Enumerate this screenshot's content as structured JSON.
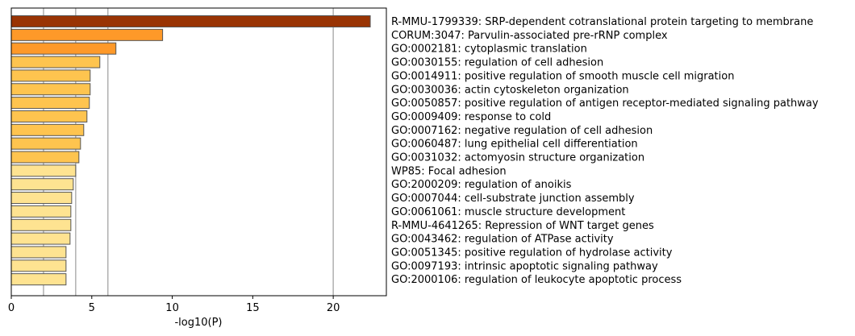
{
  "chart_data": {
    "type": "bar",
    "orientation": "horizontal",
    "xlabel": "-log10(P)",
    "xlim": [
      0,
      23.3
    ],
    "xticks": [
      0,
      5,
      10,
      15,
      20
    ],
    "gridlines_x": [
      2,
      4,
      6,
      20
    ],
    "categories": [
      "R-MMU-1799339: SRP-dependent cotranslational protein targeting to membrane",
      "CORUM:3047: Parvulin-associated pre-rRNP complex",
      "GO:0002181: cytoplasmic translation",
      "GO:0030155: regulation of cell adhesion",
      "GO:0014911: positive regulation of smooth muscle cell migration",
      "GO:0030036: actin cytoskeleton organization",
      "GO:0050857: positive regulation of antigen receptor-mediated signaling pathway",
      "GO:0009409: response to cold",
      "GO:0007162: negative regulation of cell adhesion",
      "GO:0060487: lung epithelial cell differentiation",
      "GO:0031032: actomyosin structure organization",
      "WP85: Focal adhesion",
      "GO:2000209: regulation of anoikis",
      "GO:0007044: cell-substrate junction assembly",
      "GO:0061061: muscle structure development",
      "R-MMU-4641265: Repression of WNT target genes",
      "GO:0043462: regulation of ATPase activity",
      "GO:0051345: positive regulation of hydrolase activity",
      "GO:0097193: intrinsic apoptotic signaling pathway",
      "GO:2000106: regulation of leukocyte apoptotic process"
    ],
    "values": [
      22.3,
      9.4,
      6.5,
      5.5,
      4.9,
      4.9,
      4.85,
      4.7,
      4.5,
      4.3,
      4.2,
      4.0,
      3.85,
      3.75,
      3.7,
      3.7,
      3.65,
      3.4,
      3.4,
      3.4
    ],
    "bar_colors": [
      "#993404",
      "#fe9929",
      "#fe9929",
      "#fec44f",
      "#fec44f",
      "#fec44f",
      "#fec44f",
      "#fec44f",
      "#fec44f",
      "#fec44f",
      "#fec44f",
      "#fee391",
      "#fee391",
      "#fee391",
      "#fee391",
      "#fee391",
      "#fee391",
      "#fee391",
      "#fee391",
      "#fee391"
    ],
    "bar_edge_color": "#555555",
    "grid_color": "#b0b0b0"
  }
}
